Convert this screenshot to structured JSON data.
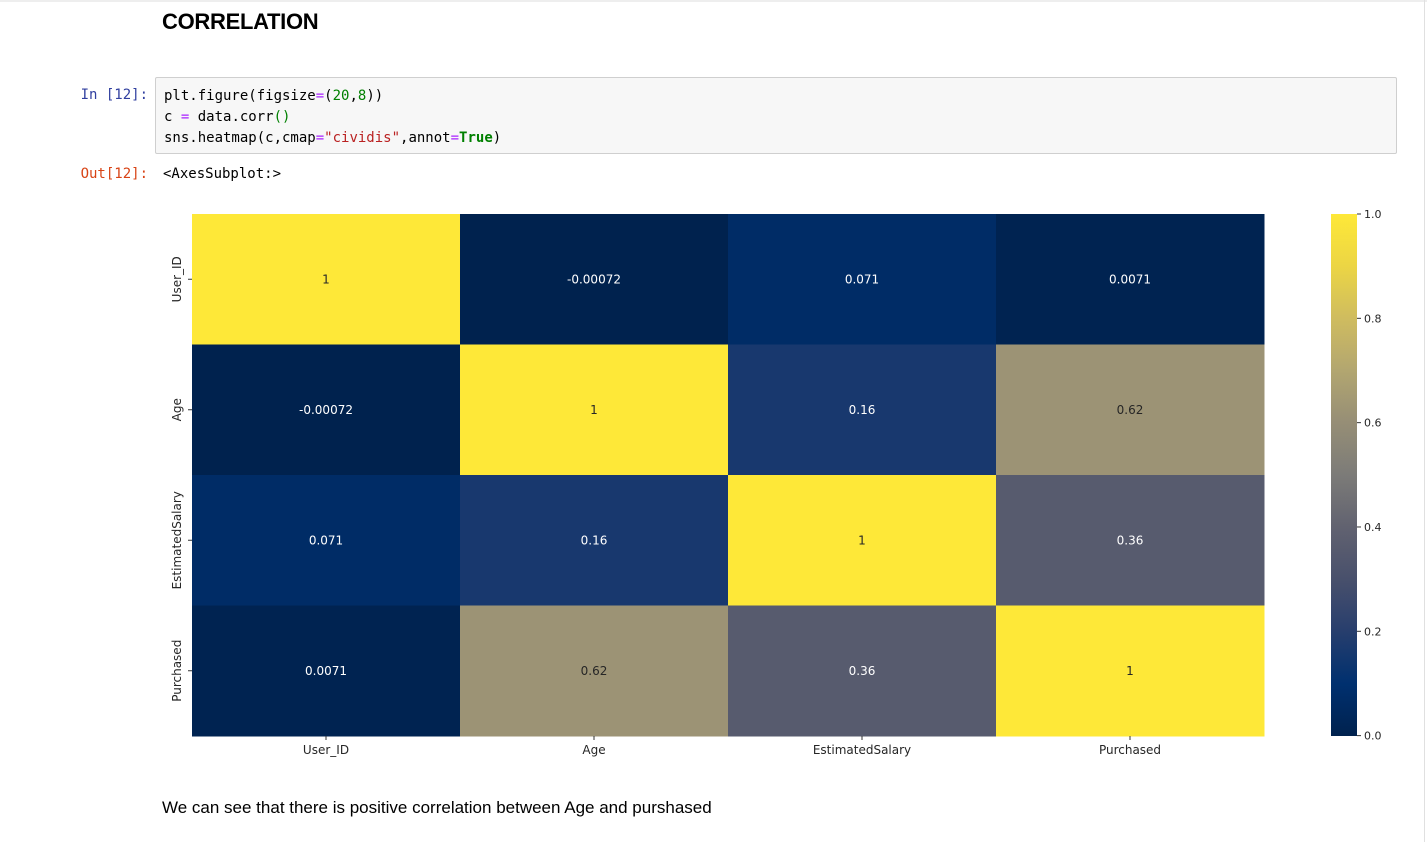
{
  "markdown": {
    "heading": "CORRELATION",
    "note": "We can see that there is positive correlation between Age and purshased"
  },
  "cell": {
    "in_prompt": "In [12]:",
    "out_prompt": "Out[12]:",
    "output_text": "<AxesSubplot:>",
    "code_lines": [
      [
        [
          "plt.figure(figsize",
          "plain"
        ],
        [
          "=",
          "op"
        ],
        [
          "(",
          "plain"
        ],
        [
          "20",
          "num"
        ],
        [
          ",",
          "plain"
        ],
        [
          "8",
          "num"
        ],
        [
          "))",
          "plain"
        ]
      ],
      [
        [
          "c ",
          "plain"
        ],
        [
          "=",
          "op"
        ],
        [
          " data.corr",
          "plain"
        ],
        [
          "()",
          "paren-g"
        ]
      ],
      [
        [
          "sns.heatmap(c,cmap",
          "plain"
        ],
        [
          "=",
          "op"
        ],
        [
          "\"cividis\"",
          "str"
        ],
        [
          ",annot",
          "plain"
        ],
        [
          "=",
          "op"
        ],
        [
          "True",
          "kw"
        ],
        [
          ")",
          "plain"
        ]
      ]
    ]
  },
  "chart_data": {
    "type": "heatmap",
    "colormap": "cividis",
    "labels": [
      "User_ID",
      "Age",
      "EstimatedSalary",
      "Purchased"
    ],
    "values": [
      [
        1,
        -0.00072,
        0.071,
        0.0071
      ],
      [
        -0.00072,
        1,
        0.16,
        0.62
      ],
      [
        0.071,
        0.16,
        1,
        0.36
      ],
      [
        0.0071,
        0.62,
        0.36,
        1
      ]
    ],
    "annotations": [
      [
        "1",
        "-0.00072",
        "0.071",
        "0.0071"
      ],
      [
        "-0.00072",
        "1",
        "0.16",
        "0.62"
      ],
      [
        "0.071",
        "0.16",
        "1",
        "0.36"
      ],
      [
        "0.0071",
        "0.62",
        "0.36",
        "1"
      ]
    ],
    "vmin": -0.00072,
    "vmax": 1,
    "colorbar_ticks": [
      0.0,
      0.2,
      0.4,
      0.6,
      0.8,
      1.0
    ],
    "colorbar_tick_labels": [
      "0.0",
      "0.2",
      "0.4",
      "0.6",
      "0.8",
      "1.0"
    ]
  }
}
